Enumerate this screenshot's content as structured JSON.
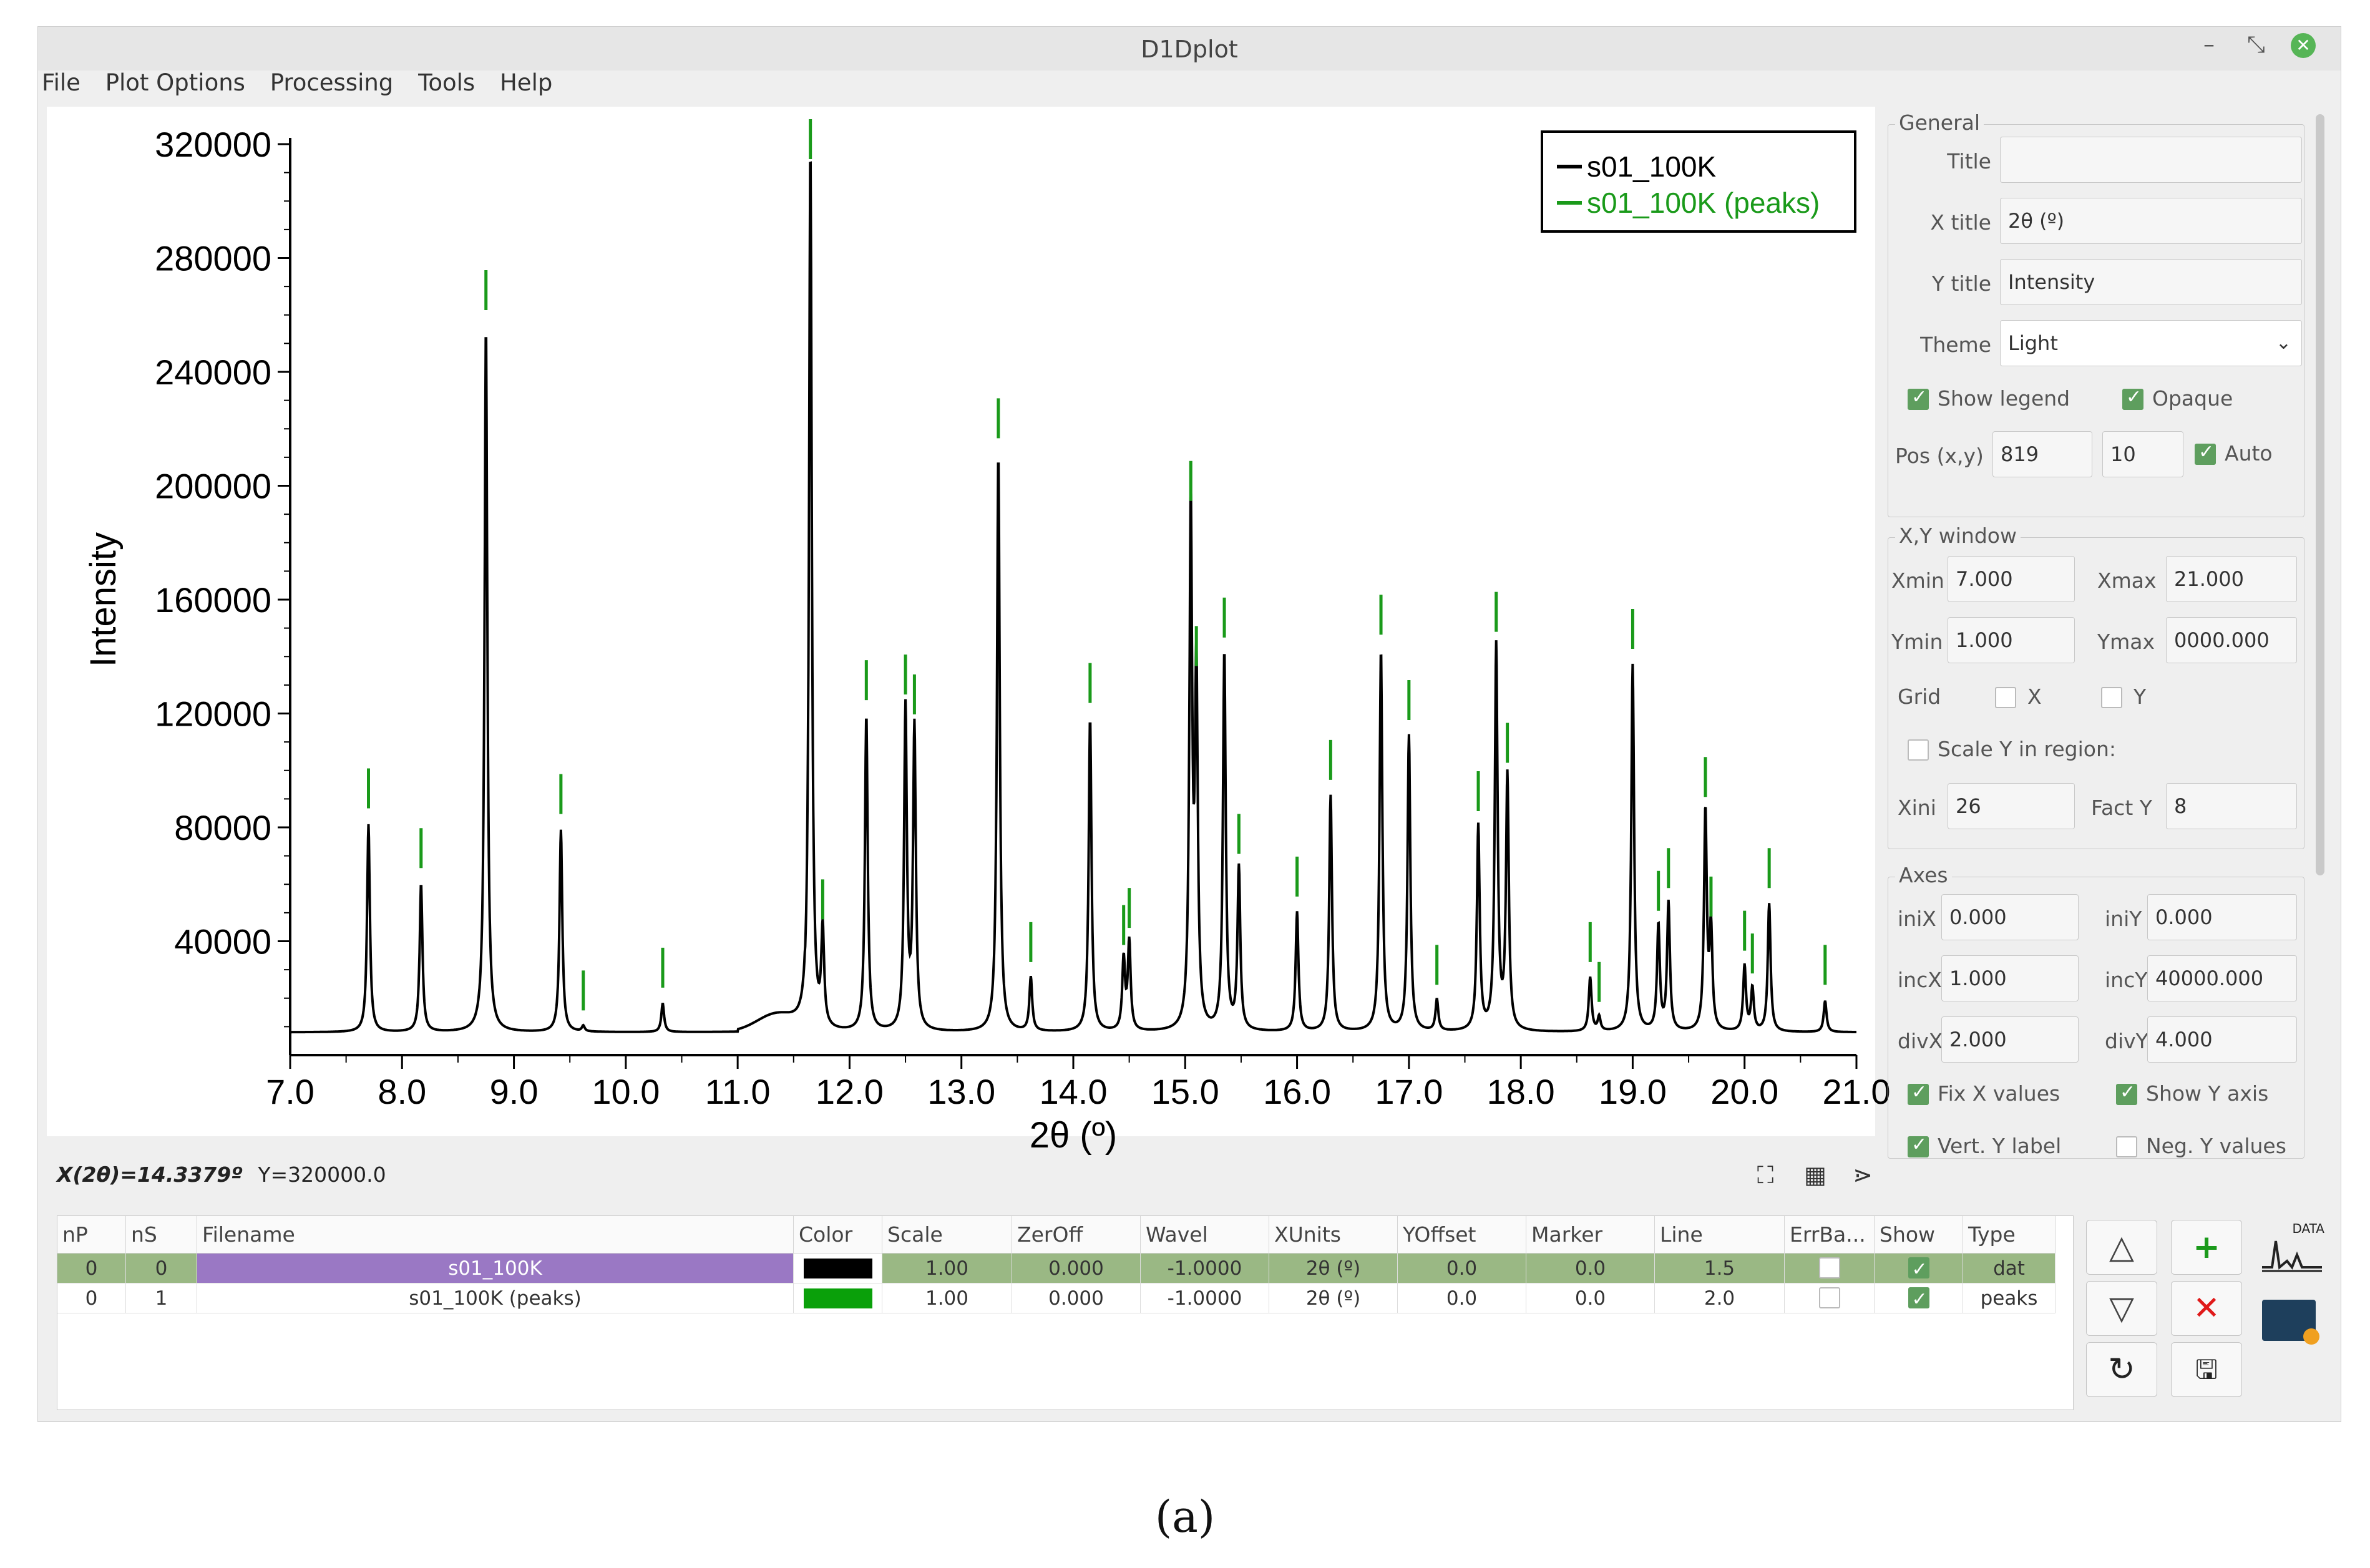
{
  "window": {
    "title": "D1Dplot",
    "controls": [
      "–",
      "⤡",
      "✕"
    ]
  },
  "menu": [
    "File",
    "Plot Options",
    "Processing",
    "Tools",
    "Help"
  ],
  "chart_data": {
    "type": "line",
    "xlabel": "2θ (º)",
    "ylabel": "Intensity",
    "xlim": [
      7.0,
      21.0
    ],
    "ylim": [
      0,
      320000
    ],
    "xticks": [
      "7.0",
      "8.0",
      "9.0",
      "10.0",
      "11.0",
      "12.0",
      "13.0",
      "14.0",
      "15.0",
      "16.0",
      "17.0",
      "18.0",
      "19.0",
      "20.0",
      "21.0"
    ],
    "yticks": [
      "40000",
      "80000",
      "120000",
      "160000",
      "200000",
      "240000",
      "280000",
      "320000"
    ],
    "legend_position": "top-right",
    "baseline": 8000,
    "series": [
      {
        "name": "s01_100K",
        "color": "#000000",
        "peaks": [
          {
            "x": 7.7,
            "y": 73000
          },
          {
            "x": 8.17,
            "y": 52000
          },
          {
            "x": 8.75,
            "y": 248000
          },
          {
            "x": 9.42,
            "y": 71000
          },
          {
            "x": 9.62,
            "y": 2000
          },
          {
            "x": 10.33,
            "y": 10000
          },
          {
            "x": 11.65,
            "y": 310000
          },
          {
            "x": 11.76,
            "y": 34000
          },
          {
            "x": 12.15,
            "y": 111000
          },
          {
            "x": 12.5,
            "y": 113000
          },
          {
            "x": 12.58,
            "y": 106000
          },
          {
            "x": 13.33,
            "y": 203000
          },
          {
            "x": 13.62,
            "y": 19000
          },
          {
            "x": 14.15,
            "y": 110000
          },
          {
            "x": 14.45,
            "y": 25000
          },
          {
            "x": 14.5,
            "y": 31000
          },
          {
            "x": 15.05,
            "y": 181000
          },
          {
            "x": 15.1,
            "y": 123000
          },
          {
            "x": 15.35,
            "y": 133000
          },
          {
            "x": 15.48,
            "y": 57000
          },
          {
            "x": 16.0,
            "y": 42000
          },
          {
            "x": 16.3,
            "y": 83000
          },
          {
            "x": 16.75,
            "y": 134000
          },
          {
            "x": 17.0,
            "y": 104000
          },
          {
            "x": 17.25,
            "y": 11000
          },
          {
            "x": 17.62,
            "y": 72000
          },
          {
            "x": 17.78,
            "y": 135000
          },
          {
            "x": 17.88,
            "y": 89000
          },
          {
            "x": 18.62,
            "y": 19000
          },
          {
            "x": 18.7,
            "y": 5000
          },
          {
            "x": 19.0,
            "y": 129000
          },
          {
            "x": 19.23,
            "y": 37000
          },
          {
            "x": 19.32,
            "y": 45000
          },
          {
            "x": 19.65,
            "y": 77000
          },
          {
            "x": 19.7,
            "y": 35000
          },
          {
            "x": 20.0,
            "y": 23000
          },
          {
            "x": 20.07,
            "y": 15000
          },
          {
            "x": 20.22,
            "y": 45000
          },
          {
            "x": 20.72,
            "y": 11000
          }
        ]
      },
      {
        "name": "s01_100K (peaks)",
        "color": "#1a9a1a"
      }
    ]
  },
  "status": {
    "x_readout": "X(2θ)=14.3379º",
    "y_readout": "Y=320000.0"
  },
  "panel": {
    "general": {
      "title": "General",
      "title_label": "Title",
      "title_value": "",
      "xtitle_label": "X title",
      "xtitle_value": "2θ (º)",
      "ytitle_label": "Y title",
      "ytitle_value": "Intensity",
      "theme_label": "Theme",
      "theme_value": "Light",
      "show_legend": "Show legend",
      "opaque": "Opaque",
      "pos_label": "Pos (x,y)",
      "pos_x": "819",
      "pos_y": "10",
      "auto": "Auto"
    },
    "xy_window": {
      "title": "X,Y window",
      "xmin_label": "Xmin",
      "xmin": "7.000",
      "xmax_label": "Xmax",
      "xmax": "21.000",
      "ymin_label": "Ymin",
      "ymin": "1.000",
      "ymax_label": "Ymax",
      "ymax": "0000.000",
      "grid_label": "Grid",
      "grid_x": "X",
      "grid_y": "Y",
      "scale_y": "Scale Y in region:",
      "xini_label": "Xini",
      "xini": "26",
      "facty_label": "Fact Y",
      "facty": "8"
    },
    "axes": {
      "title": "Axes",
      "inix_label": "iniX",
      "inix": "0.000",
      "iniy_label": "iniY",
      "iniy": "0.000",
      "incx_label": "incX",
      "incx": "1.000",
      "incy_label": "incY",
      "incy": "40000.000",
      "divx_label": "divX",
      "divx": "2.000",
      "divy_label": "divY",
      "divy": "4.000",
      "fix_x": "Fix X values",
      "show_y_axis": "Show Y axis",
      "vert_y_label": "Vert. Y label",
      "neg_y": "Neg. Y values"
    }
  },
  "table": {
    "columns": [
      "nP",
      "nS",
      "Filename",
      "Color",
      "Scale",
      "ZerOff",
      "Wavel",
      "XUnits",
      "YOffset",
      "Marker",
      "Line",
      "ErrBa...",
      "Show",
      "Type"
    ],
    "rows": [
      {
        "nP": "0",
        "nS": "0",
        "filename": "s01_100K",
        "color": "#000000",
        "scale": "1.00",
        "zeroff": "0.000",
        "wavel": "-1.0000",
        "xunits": "2θ (º)",
        "yoffset": "0.0",
        "marker": "0.0",
        "line": "1.5",
        "type": "dat"
      },
      {
        "nP": "0",
        "nS": "1",
        "filename": "s01_100K (peaks)",
        "color": "#0aa00a",
        "scale": "1.00",
        "zeroff": "0.000",
        "wavel": "-1.0000",
        "xunits": "2θ (º)",
        "yoffset": "0.0",
        "marker": "0.0",
        "line": "2.0",
        "type": "peaks"
      }
    ]
  },
  "side_buttons": {
    "up": "△",
    "add": "+",
    "down": "▽",
    "remove": "✕",
    "reload": "↻",
    "save": "🖫",
    "data_icon_label": "DATA"
  },
  "caption": "(a)"
}
